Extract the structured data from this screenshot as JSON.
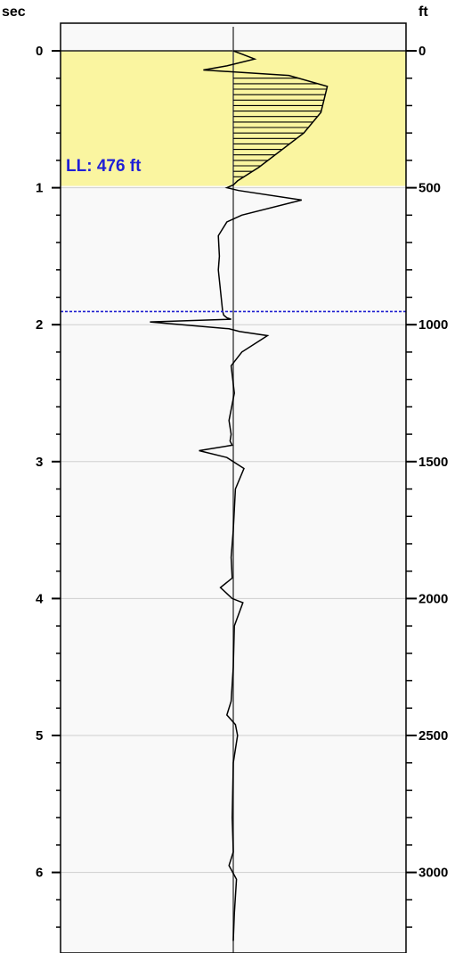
{
  "chart_data": {
    "type": "line",
    "left_axis": {
      "unit": "sec",
      "range": [
        0,
        6.5
      ],
      "major_ticks": [
        "0",
        "1",
        "2",
        "3",
        "4",
        "5",
        "6"
      ],
      "minor_step": 0.2
    },
    "right_axis": {
      "unit": "ft",
      "range": [
        0,
        3250
      ],
      "major_ticks": [
        "0",
        "500",
        "1000",
        "1500",
        "2000",
        "2500",
        "3000"
      ],
      "minor_step": 100
    },
    "grid": true,
    "highlight": {
      "from_sec": 0,
      "to_sec": 0.98,
      "color": "#faf5a0"
    },
    "line_level": {
      "label": "LL: 476 ft",
      "value_ft": 476,
      "color": "#2020d0"
    },
    "plot_background": "#f9f9f9",
    "trace": {
      "x": [
        0,
        0.5,
        1,
        -0.3,
        -1.4,
        2.6,
        4.4,
        4.1,
        3.3,
        1.2,
        0.2,
        0,
        -0.3,
        0.25,
        3.2,
        0.4,
        -0.3,
        -0.7,
        -0.65,
        -0.7,
        -0.6,
        -0.5,
        -0.45,
        -0.3,
        -0.1,
        -3.9,
        -0.2,
        0.3,
        1.6,
        0.4,
        -0.1,
        0.05,
        -0.2,
        -0.1,
        -0.15,
        -0.05,
        -1.6,
        -0.3,
        0.5,
        0.1,
        0,
        -0.1,
        -0.05,
        -0.6,
        -0.05,
        0.45,
        0.05,
        0,
        -0.1,
        -0.3,
        0.1,
        0.2,
        0,
        -0.05,
        0,
        -0.2,
        0.15,
        0.05,
        0
      ],
      "y": [
        0,
        0.03,
        0.06,
        0.11,
        0.14,
        0.18,
        0.26,
        0.45,
        0.6,
        0.85,
        0.95,
        0.98,
        1.0,
        1.02,
        1.09,
        1.2,
        1.25,
        1.35,
        1.5,
        1.6,
        1.75,
        1.9,
        1.93,
        1.95,
        1.96,
        1.98,
        2.03,
        2.05,
        2.08,
        2.2,
        2.3,
        2.5,
        2.7,
        2.8,
        2.85,
        2.88,
        2.92,
        2.97,
        3.05,
        3.2,
        3.5,
        3.7,
        3.85,
        3.92,
        4.0,
        4.03,
        4.2,
        4.5,
        4.75,
        4.85,
        4.92,
        5.0,
        5.2,
        5.6,
        5.85,
        5.95,
        6.05,
        6.3,
        6.5
      ]
    }
  }
}
